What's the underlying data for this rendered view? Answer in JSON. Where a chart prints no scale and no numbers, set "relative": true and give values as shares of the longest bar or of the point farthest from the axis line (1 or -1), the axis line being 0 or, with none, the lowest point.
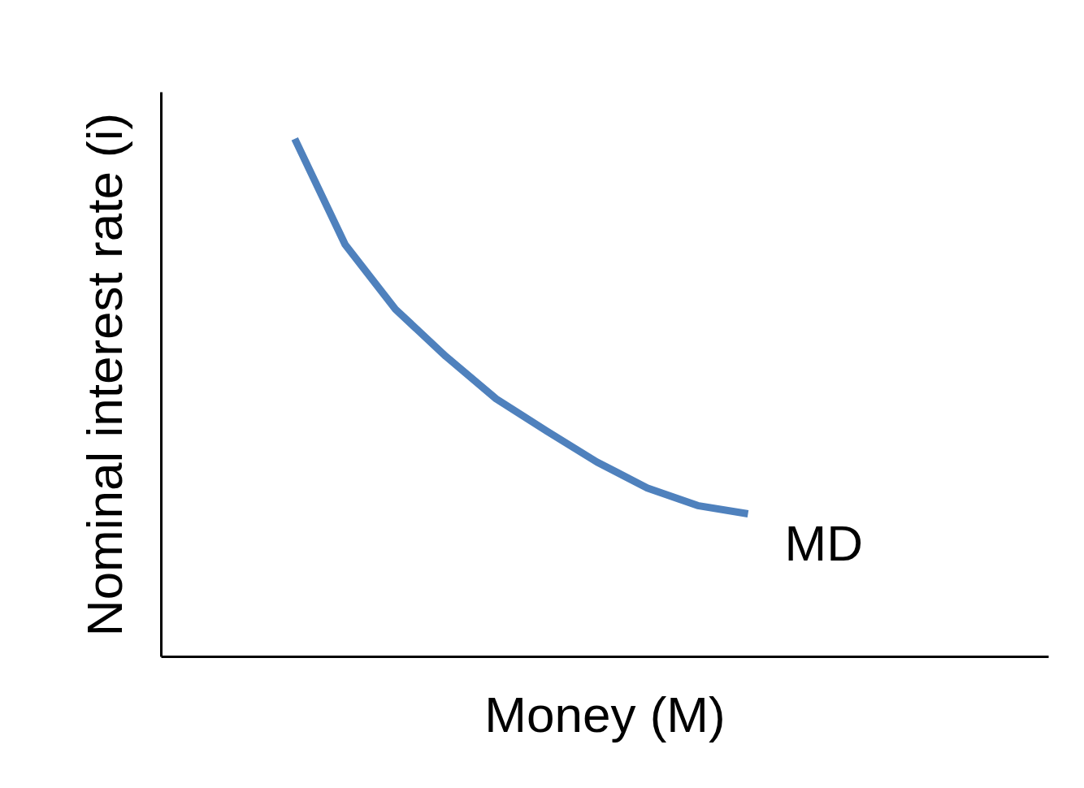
{
  "chart_data": {
    "type": "line",
    "relative": true,
    "xlabel": "Money (M)",
    "ylabel": "Nominal interest rate (i)",
    "legend": false,
    "grid": false,
    "categories": [
      null,
      null,
      null,
      null,
      null,
      null,
      null,
      null,
      null,
      null
    ],
    "series": [
      {
        "name": "MD",
        "color": "#4f81bd",
        "values": [
          1.0,
          0.796,
          0.671,
          0.58,
          0.498,
          0.436,
          0.376,
          0.326,
          0.292,
          0.276
        ]
      }
    ]
  }
}
